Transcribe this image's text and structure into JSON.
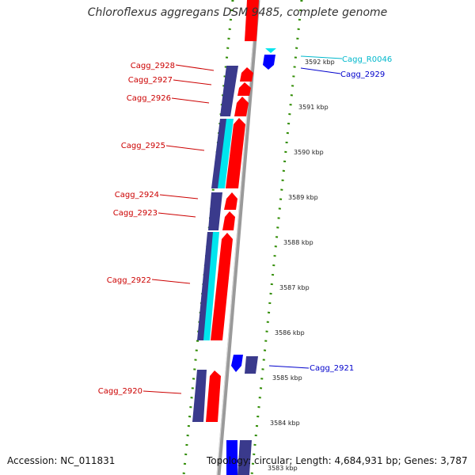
{
  "title": "Chloroflexus aggregans DSM 9485, complete genome",
  "footer": {
    "accession": "Accession: NC_011831",
    "stats": "Topology: circular; Length: 4,684,931 bp; Genes: 3,787"
  },
  "colors": {
    "forward_cds": "#ff0000",
    "reverse_cds": "#0000ff",
    "rna": "#00e5ee",
    "backbone": "#9a9a9a",
    "gc_ticks": "#2e8b00",
    "forward_label": "#cc0000",
    "reverse_label": "#0000cc",
    "rna_label": "#00b8cc"
  },
  "ruler_ticks": [
    "3592 kbp",
    "3591 kbp",
    "3590 kbp",
    "3589 kbp",
    "3588 kbp",
    "3587 kbp",
    "3586 kbp",
    "3585 kbp",
    "3584 kbp",
    "3583 kbp"
  ],
  "gene_labels": {
    "left": [
      "Cagg_2928",
      "Cagg_2927",
      "Cagg_2926",
      "Cagg_2925",
      "Cagg_2924",
      "Cagg_2923",
      "Cagg_2922",
      "Cagg_2920"
    ],
    "right": [
      "Cagg_R0046",
      "Cagg_2929",
      "Cagg_2921"
    ]
  }
}
